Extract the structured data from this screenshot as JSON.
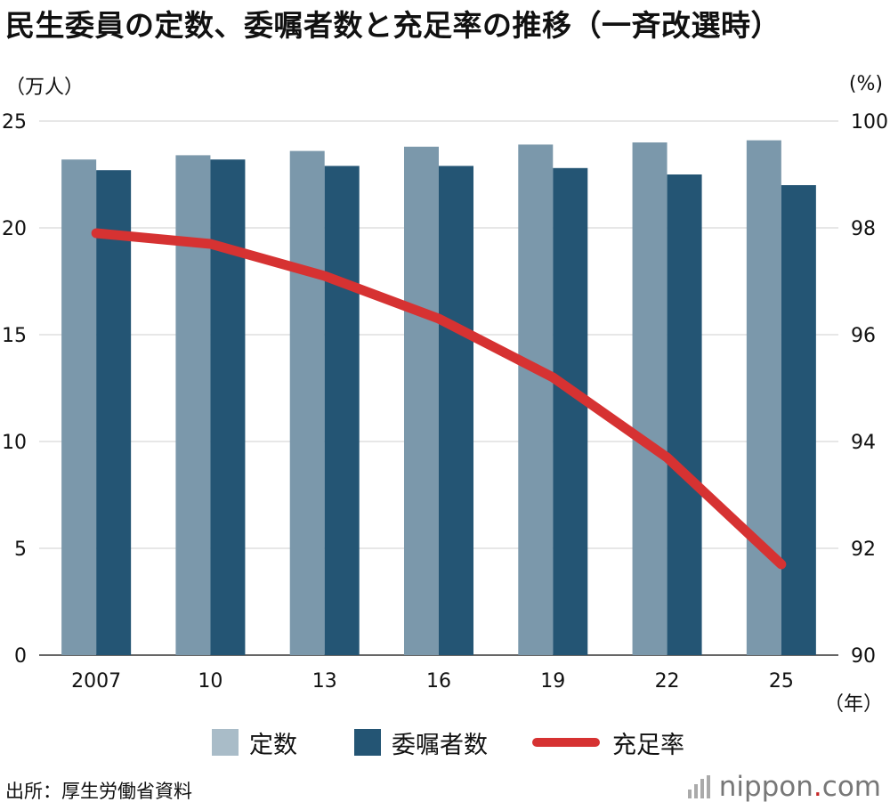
{
  "title": "民生委員の定数、委嘱者数と充足率の推移（一斉改選時）",
  "unit_left": "（万人）",
  "unit_right": "(%)",
  "x_unit": "（年）",
  "source": "出所：厚生労働省資料",
  "brand": {
    "name": "nippon",
    "dot": ".",
    "tld": "com"
  },
  "chart_data": {
    "type": "bar",
    "categories": [
      "2007",
      "10",
      "13",
      "16",
      "19",
      "22",
      "25"
    ],
    "series": [
      {
        "name": "定数",
        "type": "bar",
        "axis": "left",
        "color": "#7b98ab",
        "values": [
          23.2,
          23.4,
          23.6,
          23.8,
          23.9,
          24.0,
          24.1
        ]
      },
      {
        "name": "委嘱者数",
        "type": "bar",
        "axis": "left",
        "color": "#245574",
        "values": [
          22.7,
          23.2,
          22.9,
          22.9,
          22.8,
          22.5,
          22.0
        ]
      },
      {
        "name": "充足率",
        "type": "line",
        "axis": "right",
        "color": "#d63232",
        "values": [
          97.9,
          97.7,
          97.1,
          96.3,
          95.2,
          93.7,
          91.7
        ]
      }
    ],
    "y_left": {
      "min": 0,
      "max": 25,
      "ticks": [
        "0",
        "5",
        "10",
        "15",
        "20",
        "25"
      ]
    },
    "y_right": {
      "min": 90,
      "max": 100,
      "ticks": [
        "90",
        "92",
        "94",
        "96",
        "98",
        "100"
      ]
    },
    "grid": true,
    "legend_position": "bottom"
  },
  "legend": [
    {
      "label": "定数",
      "kind": "box",
      "color": "#a9bcc8"
    },
    {
      "label": "委嘱者数",
      "kind": "box",
      "color": "#245574"
    },
    {
      "label": "充足率",
      "kind": "line",
      "color": "#d63232"
    }
  ]
}
